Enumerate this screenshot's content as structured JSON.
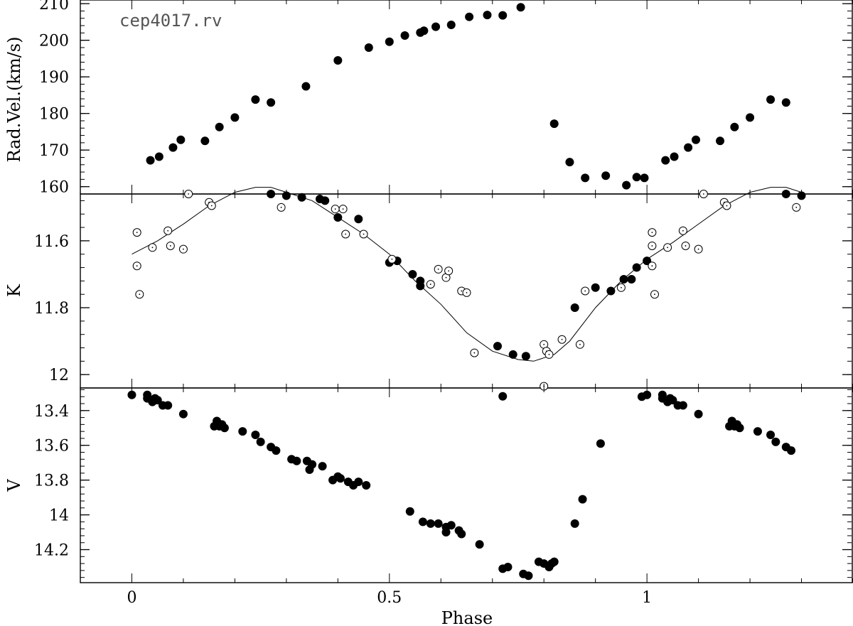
{
  "chart_data": [
    {
      "type": "scatter",
      "panel": "rv",
      "annotation": "cep4017.rv",
      "ylabel": "Rad.Vel.(km/s)",
      "xlabel": "",
      "xlim": [
        -0.1,
        1.4
      ],
      "ylim": [
        158,
        211
      ],
      "y_inverted": false,
      "yticks": [
        160,
        170,
        180,
        190,
        200,
        210
      ],
      "ytick_labels": [
        "160",
        "170",
        "180",
        "190",
        "200",
        "210"
      ],
      "series": [
        {
          "marker": "filled",
          "points": [
            [
              0.036,
              167.2
            ],
            [
              0.053,
              168.2
            ],
            [
              0.08,
              170.7
            ],
            [
              0.095,
              172.8
            ],
            [
              0.142,
              172.5
            ],
            [
              0.17,
              176.3
            ],
            [
              0.2,
              178.9
            ],
            [
              0.24,
              183.8
            ],
            [
              0.27,
              183.0
            ],
            [
              0.338,
              187.4
            ],
            [
              0.4,
              194.5
            ],
            [
              0.46,
              198.0
            ],
            [
              0.5,
              199.6
            ],
            [
              0.53,
              201.3
            ],
            [
              0.56,
              202.1
            ],
            [
              0.567,
              202.6
            ],
            [
              0.59,
              203.7
            ],
            [
              0.62,
              204.2
            ],
            [
              0.655,
              206.4
            ],
            [
              0.69,
              206.9
            ],
            [
              0.72,
              206.8
            ],
            [
              0.755,
              209.0
            ],
            [
              0.82,
              177.2
            ],
            [
              0.85,
              166.7
            ],
            [
              0.88,
              162.4
            ],
            [
              0.92,
              163.0
            ],
            [
              0.96,
              160.4
            ],
            [
              0.98,
              162.6
            ],
            [
              0.995,
              162.4
            ],
            [
              1.036,
              167.2
            ],
            [
              1.053,
              168.2
            ],
            [
              1.08,
              170.7
            ],
            [
              1.095,
              172.8
            ],
            [
              1.142,
              172.5
            ],
            [
              1.17,
              176.3
            ],
            [
              1.2,
              178.9
            ],
            [
              1.24,
              183.8
            ],
            [
              1.27,
              183.0
            ]
          ]
        }
      ]
    },
    {
      "type": "scatter",
      "panel": "K",
      "ylabel": "K",
      "xlabel": "",
      "xlim": [
        -0.1,
        1.4
      ],
      "ylim": [
        11.46,
        12.04
      ],
      "y_inverted": true,
      "yticks": [
        11.6,
        11.8,
        12.0
      ],
      "ytick_labels": [
        "11.6",
        "11.8",
        "12"
      ],
      "series": [
        {
          "marker": "filled",
          "points": [
            [
              0.27,
              11.46
            ],
            [
              0.3,
              11.465
            ],
            [
              0.33,
              11.47
            ],
            [
              0.365,
              11.475
            ],
            [
              0.375,
              11.48
            ],
            [
              0.4,
              11.53
            ],
            [
              0.44,
              11.535
            ],
            [
              0.5,
              11.665
            ],
            [
              0.515,
              11.66
            ],
            [
              0.545,
              11.7
            ],
            [
              0.56,
              11.72
            ],
            [
              0.56,
              11.735
            ],
            [
              0.71,
              11.915
            ],
            [
              0.74,
              11.94
            ],
            [
              0.765,
              11.945
            ],
            [
              0.72,
              12.065
            ],
            [
              0.86,
              11.8
            ],
            [
              0.9,
              11.74
            ],
            [
              0.93,
              11.75
            ],
            [
              0.955,
              11.715
            ],
            [
              0.97,
              11.715
            ],
            [
              0.98,
              11.68
            ],
            [
              1.0,
              11.66
            ],
            [
              1.27,
              11.46
            ],
            [
              1.3,
              11.465
            ]
          ]
        },
        {
          "marker": "open",
          "points": [
            [
              0.01,
              11.575
            ],
            [
              0.01,
              11.675
            ],
            [
              0.015,
              11.76
            ],
            [
              0.04,
              11.62
            ],
            [
              0.07,
              11.57
            ],
            [
              0.075,
              11.615
            ],
            [
              0.1,
              11.625
            ],
            [
              0.11,
              11.46
            ],
            [
              0.15,
              11.485
            ],
            [
              0.155,
              11.495
            ],
            [
              0.29,
              11.5
            ],
            [
              0.395,
              11.505
            ],
            [
              0.41,
              11.505
            ],
            [
              0.415,
              11.58
            ],
            [
              0.45,
              11.58
            ],
            [
              0.505,
              11.655
            ],
            [
              0.58,
              11.73
            ],
            [
              0.595,
              11.685
            ],
            [
              0.61,
              11.71
            ],
            [
              0.615,
              11.69
            ],
            [
              0.64,
              11.75
            ],
            [
              0.65,
              11.755
            ],
            [
              0.665,
              11.935
            ],
            [
              0.8,
              11.91
            ],
            [
              0.8,
              12.035
            ],
            [
              0.805,
              11.93
            ],
            [
              0.81,
              11.94
            ],
            [
              0.835,
              11.895
            ],
            [
              0.87,
              11.91
            ],
            [
              0.88,
              11.75
            ],
            [
              0.95,
              11.74
            ],
            [
              1.01,
              11.615
            ],
            [
              1.01,
              11.575
            ],
            [
              1.01,
              11.675
            ],
            [
              1.015,
              11.76
            ],
            [
              1.04,
              11.62
            ],
            [
              1.07,
              11.57
            ],
            [
              1.075,
              11.615
            ],
            [
              1.1,
              11.625
            ],
            [
              1.11,
              11.46
            ],
            [
              1.15,
              11.485
            ],
            [
              1.155,
              11.495
            ],
            [
              1.29,
              11.5
            ]
          ]
        },
        {
          "marker": "line",
          "points": [
            [
              0.0,
              11.64
            ],
            [
              0.05,
              11.6
            ],
            [
              0.1,
              11.55
            ],
            [
              0.15,
              11.495
            ],
            [
              0.2,
              11.455
            ],
            [
              0.24,
              11.44
            ],
            [
              0.27,
              11.44
            ],
            [
              0.3,
              11.455
            ],
            [
              0.35,
              11.48
            ],
            [
              0.4,
              11.53
            ],
            [
              0.45,
              11.58
            ],
            [
              0.5,
              11.64
            ],
            [
              0.55,
              11.72
            ],
            [
              0.6,
              11.79
            ],
            [
              0.65,
              11.875
            ],
            [
              0.7,
              11.93
            ],
            [
              0.75,
              11.955
            ],
            [
              0.78,
              11.96
            ],
            [
              0.82,
              11.94
            ],
            [
              0.85,
              11.9
            ],
            [
              0.9,
              11.8
            ],
            [
              0.95,
              11.72
            ],
            [
              1.0,
              11.655
            ],
            [
              1.05,
              11.605
            ],
            [
              1.1,
              11.55
            ],
            [
              1.15,
              11.495
            ],
            [
              1.2,
              11.455
            ],
            [
              1.24,
              11.44
            ],
            [
              1.27,
              11.44
            ],
            [
              1.3,
              11.455
            ]
          ]
        }
      ]
    },
    {
      "type": "scatter",
      "panel": "V",
      "ylabel": "V",
      "xlabel": "Phase",
      "xlim": [
        -0.1,
        1.4
      ],
      "ylim": [
        13.27,
        14.39
      ],
      "y_inverted": true,
      "yticks": [
        13.4,
        13.6,
        13.8,
        14.0,
        14.2
      ],
      "ytick_labels": [
        "13.4",
        "13.6",
        "13.8",
        "14",
        "14.2"
      ],
      "xticks": [
        0,
        0.5,
        1
      ],
      "xtick_labels": [
        "0",
        "0.5",
        "1"
      ],
      "series": [
        {
          "marker": "filled",
          "points": [
            [
              0.0,
              13.31
            ],
            [
              0.03,
              13.31
            ],
            [
              0.03,
              13.33
            ],
            [
              0.04,
              13.35
            ],
            [
              0.045,
              13.33
            ],
            [
              0.05,
              13.34
            ],
            [
              0.06,
              13.37
            ],
            [
              0.07,
              13.37
            ],
            [
              0.1,
              13.42
            ],
            [
              0.16,
              13.49
            ],
            [
              0.165,
              13.46
            ],
            [
              0.17,
              13.49
            ],
            [
              0.175,
              13.48
            ],
            [
              0.18,
              13.5
            ],
            [
              0.215,
              13.52
            ],
            [
              0.24,
              13.54
            ],
            [
              0.25,
              13.58
            ],
            [
              0.27,
              13.61
            ],
            [
              0.28,
              13.63
            ],
            [
              0.31,
              13.68
            ],
            [
              0.32,
              13.69
            ],
            [
              0.34,
              13.69
            ],
            [
              0.345,
              13.74
            ],
            [
              0.35,
              13.71
            ],
            [
              0.37,
              13.72
            ],
            [
              0.39,
              13.8
            ],
            [
              0.4,
              13.78
            ],
            [
              0.405,
              13.79
            ],
            [
              0.42,
              13.81
            ],
            [
              0.43,
              13.83
            ],
            [
              0.44,
              13.81
            ],
            [
              0.455,
              13.83
            ],
            [
              0.54,
              13.98
            ],
            [
              0.565,
              14.04
            ],
            [
              0.58,
              14.05
            ],
            [
              0.595,
              14.05
            ],
            [
              0.61,
              14.07
            ],
            [
              0.62,
              14.06
            ],
            [
              0.61,
              14.1
            ],
            [
              0.635,
              14.09
            ],
            [
              0.64,
              14.11
            ],
            [
              0.675,
              14.17
            ],
            [
              0.72,
              14.31
            ],
            [
              0.73,
              14.3
            ],
            [
              0.76,
              14.34
            ],
            [
              0.77,
              14.35
            ],
            [
              0.79,
              14.27
            ],
            [
              0.8,
              14.28
            ],
            [
              0.81,
              14.3
            ],
            [
              0.815,
              14.28
            ],
            [
              0.82,
              14.27
            ],
            [
              0.86,
              14.05
            ],
            [
              0.875,
              13.91
            ],
            [
              0.91,
              13.59
            ],
            [
              0.99,
              13.32
            ],
            [
              1.0,
              13.31
            ],
            [
              1.03,
              13.31
            ],
            [
              1.03,
              13.33
            ],
            [
              1.04,
              13.35
            ],
            [
              1.045,
              13.33
            ],
            [
              1.05,
              13.34
            ],
            [
              1.06,
              13.37
            ],
            [
              1.07,
              13.37
            ],
            [
              1.1,
              13.42
            ],
            [
              1.16,
              13.49
            ],
            [
              1.165,
              13.46
            ],
            [
              1.17,
              13.49
            ],
            [
              1.175,
              13.48
            ],
            [
              1.18,
              13.5
            ],
            [
              1.215,
              13.52
            ],
            [
              1.24,
              13.54
            ],
            [
              1.25,
              13.58
            ],
            [
              1.27,
              13.61
            ],
            [
              1.28,
              13.63
            ]
          ]
        }
      ]
    }
  ]
}
